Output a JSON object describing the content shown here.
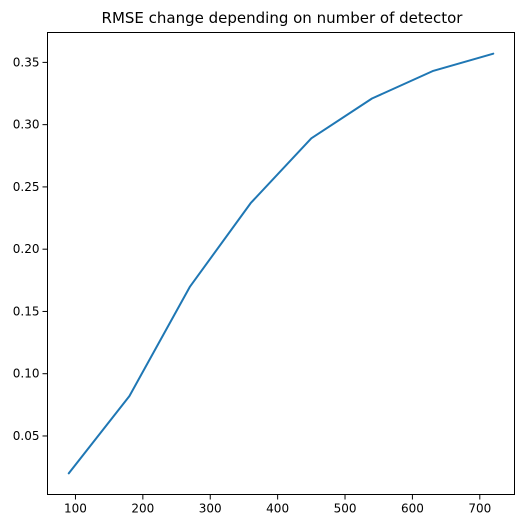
{
  "chart_data": {
    "type": "line",
    "title": "RMSE change depending on number of detector",
    "xlabel": "",
    "ylabel": "",
    "xlim": [
      58.5,
      751.5
    ],
    "ylim": [
      0.003,
      0.374
    ],
    "xticks": [
      100,
      200,
      300,
      400,
      500,
      600,
      700
    ],
    "yticks": [
      0.05,
      0.1,
      0.15,
      0.2,
      0.25,
      0.3,
      0.35
    ],
    "xtick_labels": [
      "100",
      "200",
      "300",
      "400",
      "500",
      "600",
      "700"
    ],
    "ytick_labels": [
      "0.05",
      "0.10",
      "0.15",
      "0.20",
      "0.25",
      "0.30",
      "0.35"
    ],
    "grid": false,
    "legend": "none",
    "series": [
      {
        "color": "#1f77b4",
        "x": [
          90,
          180,
          270,
          360,
          450,
          540,
          630,
          720
        ],
        "y": [
          0.02,
          0.082,
          0.17,
          0.237,
          0.289,
          0.321,
          0.343,
          0.357
        ]
      }
    ]
  }
}
